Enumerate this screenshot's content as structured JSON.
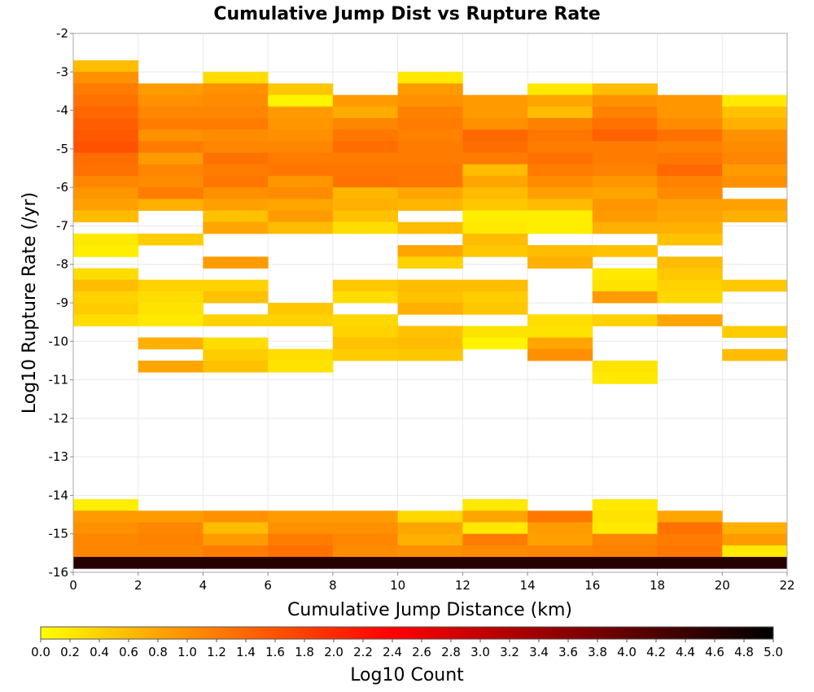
{
  "chart_data": {
    "type": "heatmap",
    "title": "Cumulative Jump Dist vs Rupture Rate",
    "xlabel": "Cumulative Jump Distance (km)",
    "ylabel": "Log10 Rupture Rate (/yr)",
    "xlim": [
      0,
      22
    ],
    "ylim": [
      -16,
      -2
    ],
    "x_ticks": [
      "0",
      "2",
      "4",
      "6",
      "8",
      "10",
      "12",
      "14",
      "16",
      "18",
      "20",
      "22"
    ],
    "y_ticks": [
      "-2",
      "-3",
      "-4",
      "-5",
      "-6",
      "-7",
      "-8",
      "-9",
      "-10",
      "-11",
      "-12",
      "-13",
      "-14",
      "-15",
      "-16"
    ],
    "bin_width_x": 2,
    "bin_height_y": 0.3,
    "grid": true,
    "colorbar": {
      "label": "Log10 Count",
      "min": 0,
      "max": 5,
      "ticks": [
        "0.0",
        "0.2",
        "0.4",
        "0.6",
        "0.8",
        "1.0",
        "1.2",
        "1.4",
        "1.6",
        "1.8",
        "2.0",
        "2.2",
        "2.4",
        "2.6",
        "2.8",
        "3.0",
        "3.2",
        "3.4",
        "3.6",
        "3.8",
        "4.0",
        "4.2",
        "4.4",
        "4.6",
        "4.8",
        "5.0"
      ],
      "colors": [
        "#ffff00",
        "#ffa500",
        "#ff0000",
        "#000000"
      ]
    },
    "columns": [
      {
        "x0": 0,
        "cells": [
          [
            -3.0,
            0.6
          ],
          [
            -3.3,
            1.0
          ],
          [
            -3.6,
            1.2
          ],
          [
            -3.9,
            1.3
          ],
          [
            -4.2,
            1.4
          ],
          [
            -4.5,
            1.5
          ],
          [
            -4.8,
            1.55
          ],
          [
            -5.1,
            1.6
          ],
          [
            -5.4,
            1.35
          ],
          [
            -5.7,
            1.3
          ],
          [
            -6.0,
            1.1
          ],
          [
            -6.3,
            0.95
          ],
          [
            -6.6,
            0.85
          ],
          [
            -6.9,
            0.6
          ],
          [
            -7.5,
            0.2
          ],
          [
            -7.8,
            0.15
          ],
          [
            -8.4,
            0.3
          ],
          [
            -8.7,
            0.6
          ],
          [
            -9.0,
            0.4
          ],
          [
            -9.3,
            0.45
          ],
          [
            -9.6,
            0.3
          ],
          [
            -14.4,
            0.15
          ],
          [
            -14.7,
            0.9
          ],
          [
            -15.0,
            1.0
          ],
          [
            -15.3,
            1.1
          ],
          [
            -15.6,
            1.1
          ],
          [
            -15.9,
            4.6
          ]
        ]
      },
      {
        "x0": 2,
        "cells": [
          [
            -3.6,
            0.9
          ],
          [
            -3.9,
            1.0
          ],
          [
            -4.2,
            1.1
          ],
          [
            -4.5,
            1.2
          ],
          [
            -4.8,
            1.0
          ],
          [
            -5.1,
            1.2
          ],
          [
            -5.4,
            0.9
          ],
          [
            -5.7,
            1.1
          ],
          [
            -6.0,
            1.05
          ],
          [
            -6.3,
            1.2
          ],
          [
            -6.6,
            0.7
          ],
          [
            -7.5,
            0.45
          ],
          [
            -8.7,
            0.4
          ],
          [
            -9.0,
            0.3
          ],
          [
            -9.3,
            0.25
          ],
          [
            -9.6,
            0.2
          ],
          [
            -10.2,
            0.7
          ],
          [
            -10.8,
            0.8
          ],
          [
            -14.7,
            0.9
          ],
          [
            -15.0,
            1.1
          ],
          [
            -15.3,
            1.15
          ],
          [
            -15.6,
            1.1
          ],
          [
            -15.9,
            4.6
          ]
        ]
      },
      {
        "x0": 4,
        "cells": [
          [
            -3.3,
            0.3
          ],
          [
            -3.6,
            1.0
          ],
          [
            -3.9,
            1.05
          ],
          [
            -4.2,
            1.1
          ],
          [
            -4.5,
            1.2
          ],
          [
            -4.8,
            1.05
          ],
          [
            -5.1,
            1.1
          ],
          [
            -5.4,
            1.3
          ],
          [
            -5.7,
            1.2
          ],
          [
            -6.0,
            1.25
          ],
          [
            -6.3,
            1.0
          ],
          [
            -6.6,
            0.85
          ],
          [
            -6.9,
            0.55
          ],
          [
            -7.2,
            0.8
          ],
          [
            -8.1,
            0.9
          ],
          [
            -8.7,
            0.4
          ],
          [
            -9.0,
            0.55
          ],
          [
            -9.6,
            0.4
          ],
          [
            -10.2,
            0.3
          ],
          [
            -10.5,
            0.45
          ],
          [
            -10.8,
            0.55
          ],
          [
            -14.7,
            1.0
          ],
          [
            -15.0,
            0.6
          ],
          [
            -15.3,
            0.9
          ],
          [
            -15.6,
            1.2
          ],
          [
            -15.9,
            4.6
          ]
        ]
      },
      {
        "x0": 6,
        "cells": [
          [
            -3.6,
            0.5
          ],
          [
            -3.9,
            0.1
          ],
          [
            -4.2,
            0.9
          ],
          [
            -4.5,
            0.95
          ],
          [
            -4.8,
            1.0
          ],
          [
            -5.1,
            1.1
          ],
          [
            -5.4,
            1.2
          ],
          [
            -5.7,
            1.25
          ],
          [
            -6.0,
            0.95
          ],
          [
            -6.3,
            1.05
          ],
          [
            -6.6,
            0.8
          ],
          [
            -6.9,
            0.9
          ],
          [
            -7.2,
            0.6
          ],
          [
            -9.3,
            0.5
          ],
          [
            -9.6,
            0.4
          ],
          [
            -10.5,
            0.3
          ],
          [
            -10.8,
            0.25
          ],
          [
            -14.7,
            0.9
          ],
          [
            -15.0,
            1.0
          ],
          [
            -15.3,
            1.2
          ],
          [
            -15.6,
            1.3
          ],
          [
            -15.9,
            4.6
          ]
        ]
      },
      {
        "x0": 8,
        "cells": [
          [
            -3.9,
            0.9
          ],
          [
            -4.2,
            0.75
          ],
          [
            -4.5,
            1.1
          ],
          [
            -4.8,
            1.25
          ],
          [
            -5.1,
            1.35
          ],
          [
            -5.4,
            1.2
          ],
          [
            -5.7,
            1.25
          ],
          [
            -6.0,
            1.3
          ],
          [
            -6.3,
            0.65
          ],
          [
            -6.6,
            0.7
          ],
          [
            -6.9,
            0.55
          ],
          [
            -7.2,
            0.3
          ],
          [
            -8.7,
            0.5
          ],
          [
            -9.0,
            0.3
          ],
          [
            -9.6,
            0.35
          ],
          [
            -9.9,
            0.4
          ],
          [
            -10.2,
            0.55
          ],
          [
            -10.5,
            0.45
          ],
          [
            -14.7,
            0.9
          ],
          [
            -15.0,
            1.0
          ],
          [
            -15.3,
            1.1
          ],
          [
            -15.6,
            1.05
          ],
          [
            -15.9,
            4.6
          ]
        ]
      },
      {
        "x0": 10,
        "cells": [
          [
            -3.3,
            0.2
          ],
          [
            -3.6,
            0.9
          ],
          [
            -3.9,
            1.0
          ],
          [
            -4.2,
            1.15
          ],
          [
            -4.5,
            1.2
          ],
          [
            -4.8,
            1.15
          ],
          [
            -5.1,
            1.2
          ],
          [
            -5.4,
            1.2
          ],
          [
            -5.7,
            1.25
          ],
          [
            -6.0,
            1.25
          ],
          [
            -6.3,
            0.8
          ],
          [
            -6.6,
            0.65
          ],
          [
            -7.2,
            0.6
          ],
          [
            -7.8,
            0.8
          ],
          [
            -8.1,
            0.4
          ],
          [
            -8.7,
            0.6
          ],
          [
            -9.0,
            0.55
          ],
          [
            -9.3,
            0.7
          ],
          [
            -9.9,
            0.55
          ],
          [
            -10.2,
            0.6
          ],
          [
            -10.5,
            0.5
          ],
          [
            -14.7,
            0.35
          ],
          [
            -15.0,
            0.8
          ],
          [
            -15.3,
            0.7
          ],
          [
            -15.6,
            1.0
          ],
          [
            -15.9,
            4.6
          ]
        ]
      },
      {
        "x0": 12,
        "cells": [
          [
            -3.9,
            0.9
          ],
          [
            -4.2,
            0.9
          ],
          [
            -4.5,
            1.0
          ],
          [
            -4.8,
            1.4
          ],
          [
            -5.1,
            1.35
          ],
          [
            -5.4,
            1.2
          ],
          [
            -5.7,
            0.6
          ],
          [
            -6.0,
            0.8
          ],
          [
            -6.3,
            0.6
          ],
          [
            -6.6,
            0.5
          ],
          [
            -6.9,
            0.15
          ],
          [
            -7.2,
            0.2
          ],
          [
            -7.5,
            0.6
          ],
          [
            -7.8,
            0.5
          ],
          [
            -8.7,
            0.6
          ],
          [
            -9.0,
            0.45
          ],
          [
            -9.3,
            0.5
          ],
          [
            -9.9,
            0.25
          ],
          [
            -10.2,
            0.1
          ],
          [
            -14.4,
            0.2
          ],
          [
            -14.7,
            0.8
          ],
          [
            -15.0,
            0.2
          ],
          [
            -15.3,
            1.2
          ],
          [
            -15.6,
            1.05
          ],
          [
            -15.9,
            4.6
          ]
        ]
      },
      {
        "x0": 14,
        "cells": [
          [
            -3.6,
            0.2
          ],
          [
            -3.9,
            0.8
          ],
          [
            -4.2,
            0.6
          ],
          [
            -4.5,
            1.15
          ],
          [
            -4.8,
            1.25
          ],
          [
            -5.1,
            1.2
          ],
          [
            -5.4,
            1.3
          ],
          [
            -5.7,
            1.2
          ],
          [
            -6.0,
            1.05
          ],
          [
            -6.3,
            0.85
          ],
          [
            -6.6,
            0.6
          ],
          [
            -6.9,
            0.15
          ],
          [
            -7.2,
            0.15
          ],
          [
            -7.8,
            0.6
          ],
          [
            -8.1,
            0.7
          ],
          [
            -9.6,
            0.3
          ],
          [
            -9.9,
            0.25
          ],
          [
            -10.2,
            0.8
          ],
          [
            -10.5,
            1.0
          ],
          [
            -14.7,
            1.25
          ],
          [
            -15.0,
            0.9
          ],
          [
            -15.3,
            0.85
          ],
          [
            -15.6,
            1.1
          ],
          [
            -15.9,
            4.6
          ]
        ]
      },
      {
        "x0": 16,
        "cells": [
          [
            -3.6,
            0.6
          ],
          [
            -3.9,
            1.0
          ],
          [
            -4.2,
            1.15
          ],
          [
            -4.5,
            1.3
          ],
          [
            -4.8,
            1.45
          ],
          [
            -5.1,
            1.2
          ],
          [
            -5.4,
            1.2
          ],
          [
            -5.7,
            1.15
          ],
          [
            -6.0,
            0.95
          ],
          [
            -6.3,
            0.8
          ],
          [
            -6.6,
            0.95
          ],
          [
            -6.9,
            0.9
          ],
          [
            -7.2,
            0.7
          ],
          [
            -7.8,
            0.55
          ],
          [
            -8.4,
            0.2
          ],
          [
            -8.7,
            0.25
          ],
          [
            -9.0,
            0.9
          ],
          [
            -9.6,
            0.4
          ],
          [
            -10.8,
            0.25
          ],
          [
            -11.1,
            0.2
          ],
          [
            -14.4,
            0.2
          ],
          [
            -14.7,
            0.25
          ],
          [
            -15.0,
            0.2
          ],
          [
            -15.3,
            1.1
          ],
          [
            -15.6,
            1.15
          ],
          [
            -15.9,
            4.6
          ]
        ]
      },
      {
        "x0": 18,
        "cells": [
          [
            -3.9,
            0.95
          ],
          [
            -4.2,
            0.95
          ],
          [
            -4.5,
            1.05
          ],
          [
            -4.8,
            1.3
          ],
          [
            -5.1,
            1.15
          ],
          [
            -5.4,
            1.25
          ],
          [
            -5.7,
            1.4
          ],
          [
            -6.0,
            1.15
          ],
          [
            -6.3,
            1.05
          ],
          [
            -6.6,
            0.85
          ],
          [
            -6.9,
            0.8
          ],
          [
            -7.2,
            0.7
          ],
          [
            -7.5,
            0.55
          ],
          [
            -8.1,
            0.6
          ],
          [
            -8.4,
            0.5
          ],
          [
            -8.7,
            0.4
          ],
          [
            -9.0,
            0.35
          ],
          [
            -9.6,
            0.8
          ],
          [
            -14.7,
            0.8
          ],
          [
            -15.0,
            1.3
          ],
          [
            -15.3,
            1.2
          ],
          [
            -15.6,
            1.25
          ],
          [
            -15.9,
            4.6
          ]
        ]
      },
      {
        "x0": 20,
        "cells": [
          [
            -3.9,
            0.2
          ],
          [
            -4.2,
            0.55
          ],
          [
            -4.5,
            0.7
          ],
          [
            -4.8,
            1.0
          ],
          [
            -5.1,
            1.05
          ],
          [
            -5.4,
            1.1
          ],
          [
            -5.7,
            0.9
          ],
          [
            -6.0,
            1.0
          ],
          [
            -6.6,
            0.85
          ],
          [
            -6.9,
            0.7
          ],
          [
            -8.7,
            0.5
          ],
          [
            -9.9,
            0.45
          ],
          [
            -10.5,
            0.6
          ],
          [
            -15.0,
            0.7
          ],
          [
            -15.3,
            0.9
          ],
          [
            -15.6,
            0.2
          ],
          [
            -15.9,
            4.6
          ]
        ]
      }
    ]
  }
}
